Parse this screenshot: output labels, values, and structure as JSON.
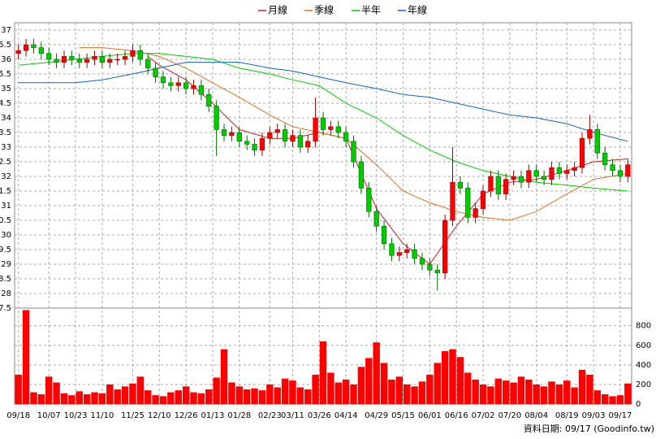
{
  "chart_data": {
    "type": "candlestick",
    "legend": [
      "月線",
      "季線",
      "半年",
      "年線"
    ],
    "footer": "資料日期: 09/17 (Goodinfo.tw)",
    "xlim": [
      -0.5,
      80.5
    ],
    "xticks": [
      {
        "value": 0,
        "label": "09/18"
      },
      {
        "value": 4,
        "label": "10/07"
      },
      {
        "value": 7.5,
        "label": "10/23"
      },
      {
        "value": 11,
        "label": "11/10"
      },
      {
        "value": 15,
        "label": "11/25"
      },
      {
        "value": 18.5,
        "label": "12/10"
      },
      {
        "value": 22,
        "label": "12/26"
      },
      {
        "value": 25.5,
        "label": "01/13"
      },
      {
        "value": 29,
        "label": "01/28"
      },
      {
        "value": 33,
        "label": "02/23"
      },
      {
        "value": 36,
        "label": "03/11"
      },
      {
        "value": 39.5,
        "label": "03/26"
      },
      {
        "value": 43,
        "label": "04/14"
      },
      {
        "value": 47,
        "label": "04/29"
      },
      {
        "value": 50.5,
        "label": "05/15"
      },
      {
        "value": 54,
        "label": "06/01"
      },
      {
        "value": 57.5,
        "label": "06/16"
      },
      {
        "value": 61,
        "label": "07/02"
      },
      {
        "value": 64.5,
        "label": "07/20"
      },
      {
        "value": 68,
        "label": "08/04"
      },
      {
        "value": 72,
        "label": "08/19"
      },
      {
        "value": 75.5,
        "label": "09/03"
      },
      {
        "value": 79,
        "label": "09/17"
      }
    ],
    "ylim": [
      27.5,
      37.25
    ],
    "yticks": [
      37,
      36.5,
      36,
      35.5,
      35,
      34.5,
      34,
      33.5,
      33,
      32.5,
      32,
      31.5,
      31,
      30.5,
      30,
      29.5,
      29,
      28.5,
      28,
      27.5
    ],
    "y2lim": [
      0,
      980
    ],
    "y2ticks": [
      0,
      200,
      400,
      600,
      800
    ],
    "grid": true,
    "up_color": "#ff0000",
    "down_color": "#00cc00",
    "volume_color": "#ff0000",
    "open": [
      36.2,
      36.3,
      36.5,
      36.4,
      36.2,
      36.0,
      35.9,
      36.1,
      36.0,
      35.9,
      36.0,
      36.1,
      35.9,
      36.0,
      36.0,
      36.1,
      36.3,
      36.0,
      35.7,
      35.4,
      35.2,
      35.1,
      35.2,
      35.0,
      35.1,
      34.8,
      34.4,
      33.6,
      33.4,
      33.5,
      33.2,
      33.1,
      32.9,
      33.3,
      33.5,
      33.6,
      33.2,
      33.4,
      33.0,
      33.2,
      34.0,
      33.6,
      33.7,
      33.5,
      33.2,
      32.5,
      31.6,
      30.8,
      30.3,
      29.7,
      29.3,
      29.4,
      29.5,
      29.2,
      29.0,
      28.8,
      28.7,
      30.5,
      31.8,
      31.6,
      30.6,
      30.9,
      31.5,
      32.0,
      31.4,
      31.9,
      32.0,
      31.8,
      32.2,
      32.0,
      31.9,
      32.3,
      32.1,
      32.2,
      32.3,
      33.3,
      33.6,
      32.8,
      32.4,
      32.2,
      32.0
    ],
    "high": [
      36.5,
      36.7,
      36.7,
      36.6,
      36.4,
      36.2,
      36.3,
      36.3,
      36.2,
      36.2,
      36.3,
      36.3,
      36.2,
      36.2,
      36.3,
      36.5,
      36.5,
      36.2,
      35.9,
      35.6,
      35.4,
      35.4,
      35.4,
      35.3,
      35.3,
      35.0,
      34.6,
      33.8,
      33.7,
      33.7,
      33.4,
      33.3,
      33.5,
      33.7,
      33.8,
      33.8,
      33.6,
      33.6,
      33.4,
      34.7,
      34.2,
      33.9,
      33.9,
      33.7,
      33.4,
      32.7,
      31.8,
      31.0,
      30.5,
      29.9,
      29.6,
      29.7,
      29.7,
      29.4,
      29.2,
      29.0,
      30.7,
      33.0,
      32.0,
      31.8,
      31.1,
      31.7,
      32.2,
      32.2,
      32.1,
      32.2,
      32.2,
      32.4,
      32.4,
      32.2,
      32.5,
      32.5,
      32.4,
      32.5,
      33.5,
      34.1,
      33.8,
      33.0,
      32.6,
      32.4,
      32.6
    ],
    "low": [
      36.0,
      36.1,
      36.2,
      36.0,
      35.8,
      35.7,
      35.7,
      35.8,
      35.7,
      35.7,
      35.8,
      35.7,
      35.7,
      35.8,
      35.8,
      35.9,
      35.8,
      35.5,
      35.2,
      35.0,
      34.9,
      34.9,
      34.8,
      34.8,
      34.6,
      34.2,
      32.7,
      33.2,
      33.2,
      33.0,
      32.9,
      32.7,
      32.7,
      33.1,
      33.3,
      33.0,
      33.0,
      32.8,
      32.8,
      33.0,
      33.4,
      33.4,
      33.3,
      33.0,
      32.3,
      31.4,
      30.6,
      30.1,
      29.5,
      29.1,
      29.1,
      29.2,
      29.0,
      28.8,
      28.6,
      28.1,
      28.5,
      30.3,
      31.4,
      30.4,
      30.4,
      30.7,
      31.3,
      31.2,
      31.2,
      31.7,
      31.6,
      31.6,
      31.8,
      31.7,
      31.7,
      31.9,
      31.9,
      32.0,
      32.1,
      33.1,
      32.6,
      32.2,
      32.0,
      31.8,
      31.8
    ],
    "close": [
      36.3,
      36.5,
      36.4,
      36.2,
      36.0,
      35.9,
      36.1,
      36.0,
      35.9,
      36.0,
      36.1,
      35.9,
      36.0,
      36.0,
      36.1,
      36.3,
      36.0,
      35.7,
      35.4,
      35.2,
      35.1,
      35.2,
      35.0,
      35.1,
      34.8,
      34.4,
      33.6,
      33.4,
      33.5,
      33.2,
      33.1,
      32.9,
      33.3,
      33.5,
      33.6,
      33.2,
      33.4,
      33.0,
      33.2,
      34.0,
      33.6,
      33.7,
      33.5,
      33.2,
      32.5,
      31.6,
      30.8,
      30.3,
      29.7,
      29.3,
      29.4,
      29.5,
      29.2,
      29.0,
      28.8,
      28.7,
      30.5,
      31.8,
      31.6,
      30.6,
      30.9,
      31.5,
      32.0,
      31.4,
      31.9,
      32.0,
      31.8,
      32.2,
      32.0,
      31.9,
      32.3,
      32.1,
      32.2,
      32.3,
      33.3,
      33.6,
      32.8,
      32.4,
      32.2,
      32.0,
      32.4
    ],
    "volume": [
      300,
      960,
      120,
      100,
      280,
      220,
      110,
      90,
      130,
      100,
      120,
      110,
      200,
      150,
      180,
      210,
      280,
      140,
      90,
      80,
      120,
      140,
      180,
      120,
      110,
      150,
      270,
      560,
      220,
      180,
      150,
      160,
      140,
      200,
      170,
      260,
      240,
      170,
      150,
      300,
      640,
      320,
      220,
      250,
      200,
      380,
      470,
      630,
      420,
      250,
      280,
      200,
      180,
      230,
      300,
      420,
      540,
      560,
      480,
      320,
      250,
      200,
      180,
      260,
      240,
      220,
      280,
      250,
      200,
      180,
      230,
      200,
      240,
      170,
      350,
      300,
      140,
      100,
      80,
      90,
      210
    ],
    "ma": [
      {
        "name": "月線",
        "color": "#cc2020",
        "x": [
          17,
          18.5,
          22,
          25.5,
          29,
          33,
          36,
          39.5,
          43,
          47,
          50.5,
          54,
          57.5,
          61,
          64.5,
          68,
          72,
          75.5,
          80
        ],
        "values": [
          36.1,
          35.8,
          35.3,
          34.5,
          33.6,
          33.3,
          33.3,
          33.5,
          33.3,
          30.9,
          29.7,
          29.0,
          30.3,
          31.4,
          31.8,
          31.9,
          32.2,
          32.5,
          32.6
        ]
      },
      {
        "name": "季線",
        "color": "#e07020",
        "x": [
          8,
          11,
          15,
          18.5,
          22,
          25.5,
          29,
          33,
          36,
          39.5,
          43,
          47,
          50.5,
          54,
          57.5,
          61,
          64.5,
          68,
          72,
          75.5,
          80
        ],
        "values": [
          36.4,
          36.4,
          36.3,
          36.1,
          35.7,
          35.2,
          34.7,
          34.1,
          33.7,
          33.5,
          33.3,
          32.4,
          31.5,
          31.1,
          30.8,
          30.6,
          30.5,
          30.8,
          31.4,
          31.9,
          32.1
        ]
      },
      {
        "name": "半年",
        "color": "#00cc00",
        "x": [
          0,
          4,
          7.5,
          11,
          15,
          18.5,
          22,
          25.5,
          29,
          33,
          36,
          39.5,
          43,
          47,
          50.5,
          54,
          57.5,
          61,
          64.5,
          68,
          72,
          75.5,
          80
        ],
        "values": [
          35.8,
          35.9,
          36.0,
          36.1,
          36.2,
          36.2,
          36.1,
          36.0,
          35.7,
          35.5,
          35.3,
          35.1,
          34.5,
          34.0,
          33.4,
          32.9,
          32.5,
          32.2,
          32.0,
          31.8,
          31.7,
          31.6,
          31.5
        ]
      },
      {
        "name": "年線",
        "color": "#1060d0",
        "x": [
          0,
          4,
          7.5,
          11,
          15,
          18.5,
          22,
          25.5,
          29,
          33,
          36,
          39.5,
          43,
          47,
          50.5,
          54,
          57.5,
          61,
          64.5,
          68,
          72,
          75.5,
          80
        ],
        "values": [
          35.2,
          35.2,
          35.2,
          35.3,
          35.5,
          35.7,
          35.9,
          35.9,
          35.9,
          35.7,
          35.6,
          35.4,
          35.2,
          35.0,
          34.8,
          34.7,
          34.5,
          34.3,
          34.1,
          34.0,
          33.8,
          33.5,
          33.2
        ]
      }
    ]
  }
}
